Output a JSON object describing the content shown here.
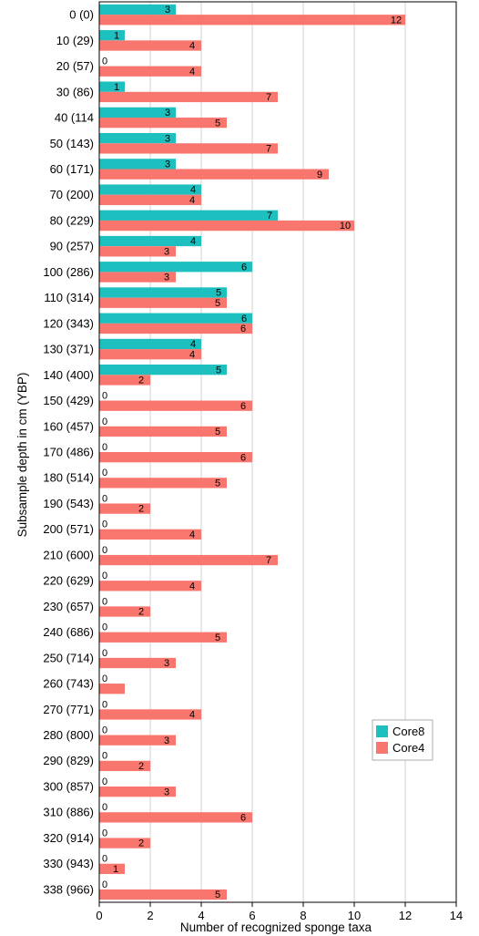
{
  "chart_data": {
    "type": "bar",
    "orientation": "horizontal",
    "xlabel": "Number of recognized sponge taxa",
    "ylabel": "Subsample depth in cm (YBP)",
    "xlim": [
      0,
      14
    ],
    "xticks": [
      "0",
      "2",
      "4",
      "6",
      "8",
      "10",
      "12",
      "14"
    ],
    "grid": "vertical",
    "legend_position": "bottom-right",
    "colors": {
      "Core8": "#1dbfbf",
      "Core4": "#f8766d"
    },
    "categories": [
      "0 (0)",
      "10 (29)",
      "20 (57)",
      "30 (86)",
      "40 (114",
      "50 (143)",
      "60 (171)",
      "70 (200)",
      "80 (229)",
      "90 (257)",
      "100 (286)",
      "110 (314)",
      "120 (343)",
      "130 (371)",
      "140 (400)",
      "150 (429)",
      "160 (457)",
      "170 (486)",
      "180 (514)",
      "190 (543)",
      "200 (571)",
      "210 (600)",
      "220 (629)",
      "230 (657)",
      "240 (686)",
      "250 (714)",
      "260 (743)",
      "270 (771)",
      "280 (800)",
      "290 (829)",
      "300 (857)",
      "310 (886)",
      "320 (914)",
      "330 (943)",
      "338 (966)"
    ],
    "series": [
      {
        "name": "Core8",
        "values": [
          3,
          1,
          0,
          1,
          3,
          3,
          3,
          4,
          7,
          4,
          6,
          5,
          6,
          4,
          5,
          0,
          0,
          0,
          0,
          0,
          0,
          0,
          0,
          0,
          0,
          0,
          0,
          0,
          0,
          0,
          0,
          0,
          0,
          0,
          0
        ]
      },
      {
        "name": "Core4",
        "values": [
          12,
          4,
          4,
          7,
          5,
          7,
          9,
          4,
          10,
          3,
          3,
          5,
          6,
          4,
          2,
          6,
          5,
          6,
          5,
          2,
          4,
          7,
          4,
          2,
          5,
          3,
          1,
          4,
          3,
          2,
          3,
          6,
          2,
          1,
          5
        ],
        "labels": [
          "12",
          "4",
          "4",
          "7",
          "5",
          "7",
          "9",
          "4",
          "10",
          "3",
          "3",
          "5",
          "6",
          "4",
          "2",
          "6",
          "5",
          "6",
          "5",
          "2",
          "4",
          "7",
          "4",
          "2",
          "5",
          "3",
          "",
          "4",
          "3",
          "2",
          "3",
          "6",
          "2",
          "1",
          "5"
        ]
      }
    ]
  }
}
